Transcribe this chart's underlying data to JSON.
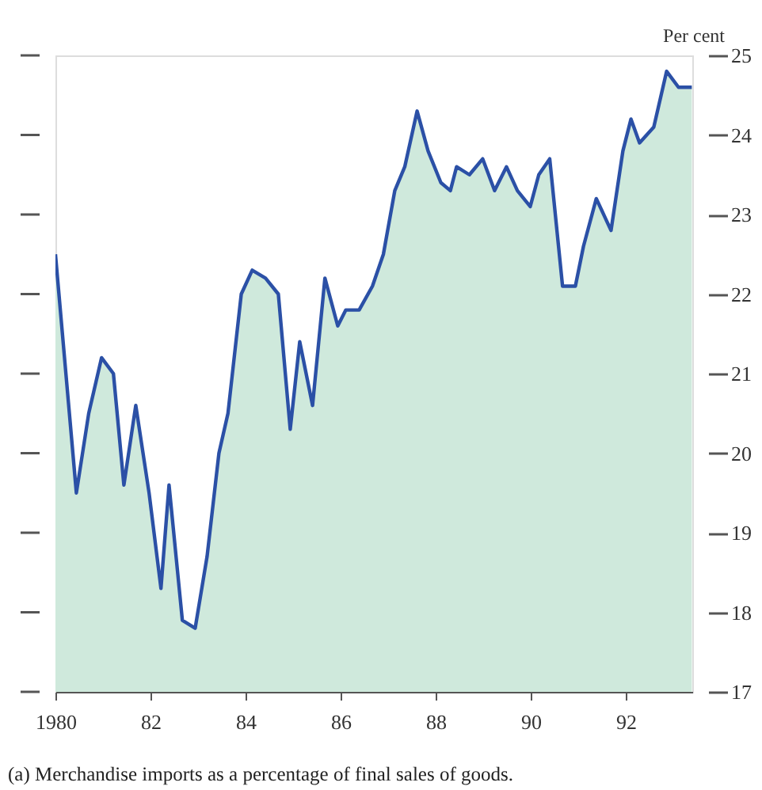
{
  "chart_data": {
    "type": "area",
    "x": [
      1980.0,
      1980.44,
      1980.7,
      1980.97,
      1981.22,
      1981.44,
      1981.69,
      1981.97,
      1982.22,
      1982.39,
      1982.67,
      1982.94,
      1983.19,
      1983.44,
      1983.63,
      1983.91,
      1984.14,
      1984.42,
      1984.69,
      1984.94,
      1985.14,
      1985.41,
      1985.67,
      1985.94,
      1986.11,
      1986.39,
      1986.67,
      1986.9,
      1987.14,
      1987.35,
      1987.61,
      1987.84,
      1988.11,
      1988.31,
      1988.44,
      1988.71,
      1988.99,
      1989.24,
      1989.49,
      1989.72,
      1989.99,
      1990.17,
      1990.4,
      1990.67,
      1990.94,
      1991.11,
      1991.38,
      1991.69,
      1991.94,
      1992.11,
      1992.29,
      1992.59,
      1992.86,
      1993.11,
      1993.39
    ],
    "series": [
      {
        "color": "#cfe9dc",
        "values": [
          22.5,
          19.5,
          20.5,
          21.2,
          21.0,
          19.6,
          20.6,
          19.5,
          18.3,
          19.6,
          17.9,
          17.8,
          18.7,
          20.0,
          20.5,
          22.0,
          22.3,
          22.2,
          22.0,
          20.3,
          21.4,
          20.6,
          22.2,
          21.6,
          21.8,
          21.8,
          22.1,
          22.5,
          23.3,
          23.6,
          24.3,
          23.8,
          23.4,
          23.3,
          23.6,
          23.5,
          23.7,
          23.3,
          23.6,
          23.3,
          23.1,
          23.5,
          23.7,
          22.1,
          22.1,
          22.6,
          23.2,
          22.8,
          23.8,
          24.2,
          23.9,
          24.1,
          24.8,
          24.6,
          24.6
        ]
      }
    ],
    "xlim": [
      1980,
      1993.4
    ],
    "xticks": [
      1980,
      {
        "value": 1982,
        "label": "82"
      },
      {
        "value": 1984,
        "label": "84"
      },
      {
        "value": 1986,
        "label": "86"
      },
      {
        "value": 1988,
        "label": "88"
      },
      {
        "value": 1990,
        "label": "90"
      },
      {
        "value": 1992,
        "label": "92"
      }
    ],
    "ylim": [
      17,
      25
    ],
    "yticks": [
      17,
      18,
      19,
      20,
      21,
      22,
      23,
      24,
      25
    ],
    "ylabel": "Per cent",
    "annotations": [
      "(a) Merchandise imports as a percentage of final sales of goods."
    ]
  }
}
